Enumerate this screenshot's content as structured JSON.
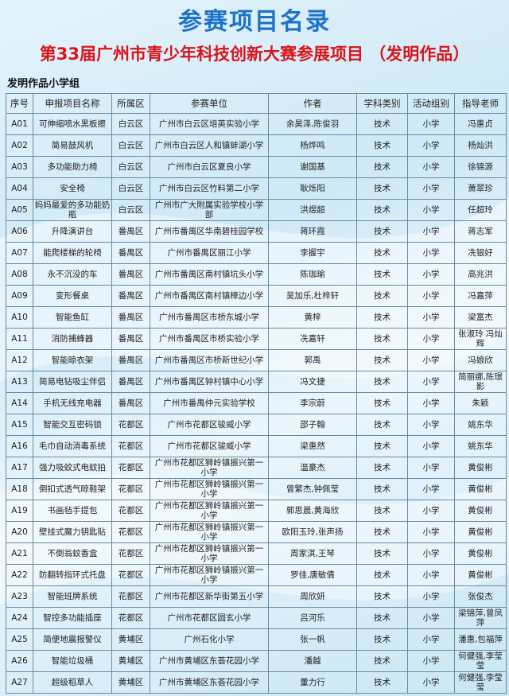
{
  "header": {
    "title": "参赛项目名录",
    "subtitle": "第33届广州市青少年科技创新大赛参展项目 （发明作品）",
    "section": "发明作品小学组"
  },
  "table": {
    "columns": [
      "序号",
      "申报项目名称",
      "所属区",
      "参赛单位",
      "作者",
      "学科类别",
      "活动组别",
      "指导老师"
    ],
    "rows": [
      [
        "A01",
        "可伸缩喷水黑板擦",
        "白云区",
        "广州市白云区培英实验小学",
        "余昊泽,陈俊羽",
        "技术",
        "小学",
        "冯惠贞"
      ],
      [
        "A02",
        "简易鼓风机",
        "白云区",
        "广州市白云区人和镇蚌湖小学",
        "杨烨鸣",
        "技术",
        "小学",
        "杨灿洪"
      ],
      [
        "A03",
        "多功能助力椅",
        "白云区",
        "广州市白云区夏良小学",
        "谢国基",
        "技术",
        "小学",
        "徐锦源"
      ],
      [
        "A04",
        "安全椅",
        "白云区",
        "广州市白云区竹料第二小学",
        "耿烁阳",
        "技术",
        "小学",
        "萧翠珍"
      ],
      [
        "A05",
        "妈妈最爱的多功能奶瓶",
        "白云区",
        "广州市广大附属实验学校小学部",
        "洪煜超",
        "技术",
        "小学",
        "任超玲"
      ],
      [
        "A06",
        "升降演讲台",
        "番禺区",
        "广州市番禺区华南碧桂园学校",
        "蒋环霞",
        "技术",
        "小学",
        "蒋志军"
      ],
      [
        "A07",
        "能爬楼梯的轮椅",
        "番禺区",
        "广州市番禺区丽江小学",
        "李握宇",
        "技术",
        "小学",
        "冼银好"
      ],
      [
        "A08",
        "永不沉没的车",
        "番禺区",
        "广州市番禺区南村镇坑头小学",
        "陈珈瑜",
        "技术",
        "小学",
        "高兆洪"
      ],
      [
        "A09",
        "变形餐桌",
        "番禺区",
        "广州市番禺区南村镇樟边小学",
        "吴加乐,杜梓轩",
        "技术",
        "小学",
        "冯嘉萍"
      ],
      [
        "A10",
        "智能鱼缸",
        "番禺区",
        "广州市番禺区市桥东城小学",
        "黄梓",
        "技术",
        "小学",
        "梁富杰"
      ],
      [
        "A11",
        "消防捕蜂器",
        "番禺区",
        "广州市番禺区市桥实验小学",
        "冼嘉轩",
        "技术",
        "小学",
        "张淑玲 冯灿辉"
      ],
      [
        "A12",
        "智能晾衣架",
        "番禺区",
        "广州市番禺区市桥新世纪小学",
        "郭禹",
        "技术",
        "小学",
        "冯娘欣"
      ],
      [
        "A13",
        "简易电钻吸尘伴侣",
        "番禺区",
        "广州市番禺区钟村镇中心小学",
        "冯文捷",
        "技术",
        "小学",
        "简丽娜,陈璟影"
      ],
      [
        "A14",
        "手机无线充电器",
        "番禺区",
        "广州市番禺仲元实验学校",
        "李宗蔚",
        "技术",
        "小学",
        "朱颖"
      ],
      [
        "A15",
        "智能交互密码锁",
        "花都区",
        "广州市花都区骏威小学",
        "邵子翰",
        "技术",
        "小学",
        "姚东华"
      ],
      [
        "A16",
        "毛巾自动消毒系统",
        "花都区",
        "广州市花都区骏威小学",
        "梁惠然",
        "技术",
        "小学",
        "姚东华"
      ],
      [
        "A17",
        "强力吸蚊式电蚊拍",
        "花都区",
        "广州市花都区狮岭镇振兴第一小学",
        "温豪杰",
        "技术",
        "小学",
        "黄俊彬"
      ],
      [
        "A18",
        "倒扣式透气晾鞋架",
        "花都区",
        "广州市花都区狮岭镇振兴第一小学",
        "曾繁杰,钟佩莹",
        "技术",
        "小学",
        "黄俊彬"
      ],
      [
        "A19",
        "书画毡手提包",
        "花都区",
        "广州市花都区狮岭镇振兴第一小学",
        "郭思晨,黄海欣",
        "技术",
        "小学",
        "黄俊彬"
      ],
      [
        "A20",
        "壁挂式魔力钥匙贴",
        "花都区",
        "广州市花都区狮岭镇振兴第一小学",
        "欧阳玉玲,张声扬",
        "技术",
        "小学",
        "黄俊彬"
      ],
      [
        "A21",
        "不倒翁蚊香盒",
        "花都区",
        "广州市花都区狮岭镇振兴第一小学",
        "周家淇,王琴",
        "技术",
        "小学",
        "黄俊彬"
      ],
      [
        "A22",
        "防翻转指环式托盘",
        "花都区",
        "广州市花都区狮岭镇振兴第一小学",
        "罗佳,唐敏倩",
        "技术",
        "小学",
        "黄俊彬"
      ],
      [
        "A23",
        "智能班牌系统",
        "花都区",
        "广州市花都区新华街第五小学",
        "周欣妍",
        "技术",
        "小学",
        "张俊杰"
      ],
      [
        "A24",
        "智控多功能插座",
        "花都区",
        "广州市花都区圆玄小学",
        "吕河乐",
        "技术",
        "小学",
        "梁锦萍,曾凤萍"
      ],
      [
        "A25",
        "简便地震报警仪",
        "黄埔区",
        "广州石化小学",
        "张一帆",
        "技术",
        "小学",
        "潘惠,包福萍"
      ],
      [
        "A26",
        "智能垃圾桶",
        "黄埔区",
        "广州市黄埔区东荟花园小学",
        "潘越",
        "技术",
        "小学",
        "何健强,李莹莹"
      ],
      [
        "A27",
        "超级稻草人",
        "黄埔区",
        "广州市黄埔区东荟花园小学",
        "董力行",
        "技术",
        "小学",
        "何健强,李莹莹"
      ]
    ]
  }
}
